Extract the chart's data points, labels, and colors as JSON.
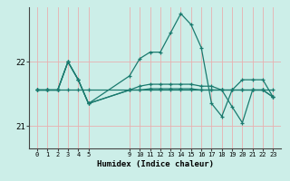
{
  "xlabel": "Humidex (Indice chaleur)",
  "background_color": "#cceee8",
  "line_color": "#1a7a6e",
  "vgrid_color": "#e8b0b0",
  "hgrid_color": "#e8b0b0",
  "ylim": [
    20.65,
    22.85
  ],
  "yticks": [
    21,
    22
  ],
  "x_positions": [
    0,
    1,
    2,
    3,
    4,
    5,
    9,
    10,
    11,
    12,
    13,
    14,
    15,
    16,
    17,
    18,
    19,
    20,
    21,
    22,
    23
  ],
  "x_tick_labels": [
    "0",
    "1",
    "2",
    "3",
    "4",
    "5",
    "9",
    "10",
    "11",
    "12",
    "13",
    "14",
    "15",
    "16",
    "17",
    "18",
    "19",
    "20",
    "21",
    "22",
    "23"
  ],
  "series": [
    [
      21.56,
      21.56,
      21.56,
      21.56,
      21.56,
      21.56,
      21.56,
      21.56,
      21.56,
      21.56,
      21.56,
      21.56,
      21.56,
      21.56,
      21.56,
      21.56,
      21.56,
      21.56,
      21.56,
      21.56,
      21.56
    ],
    [
      21.56,
      21.56,
      21.56,
      22.0,
      21.72,
      21.35,
      21.78,
      22.05,
      22.15,
      22.15,
      22.45,
      22.75,
      22.58,
      22.22,
      21.35,
      21.15,
      21.56,
      21.72,
      21.72,
      21.72,
      21.45
    ],
    [
      21.56,
      21.56,
      21.56,
      22.0,
      21.72,
      21.35,
      21.56,
      21.62,
      21.65,
      21.65,
      21.65,
      21.65,
      21.65,
      21.62,
      21.62,
      21.56,
      21.3,
      21.05,
      21.56,
      21.56,
      21.45
    ],
    [
      21.56,
      21.56,
      21.56,
      22.0,
      21.72,
      21.35,
      21.56,
      21.56,
      21.58,
      21.58,
      21.58,
      21.58,
      21.58,
      21.56,
      21.56,
      21.56,
      21.56,
      21.56,
      21.56,
      21.56,
      21.45
    ]
  ]
}
